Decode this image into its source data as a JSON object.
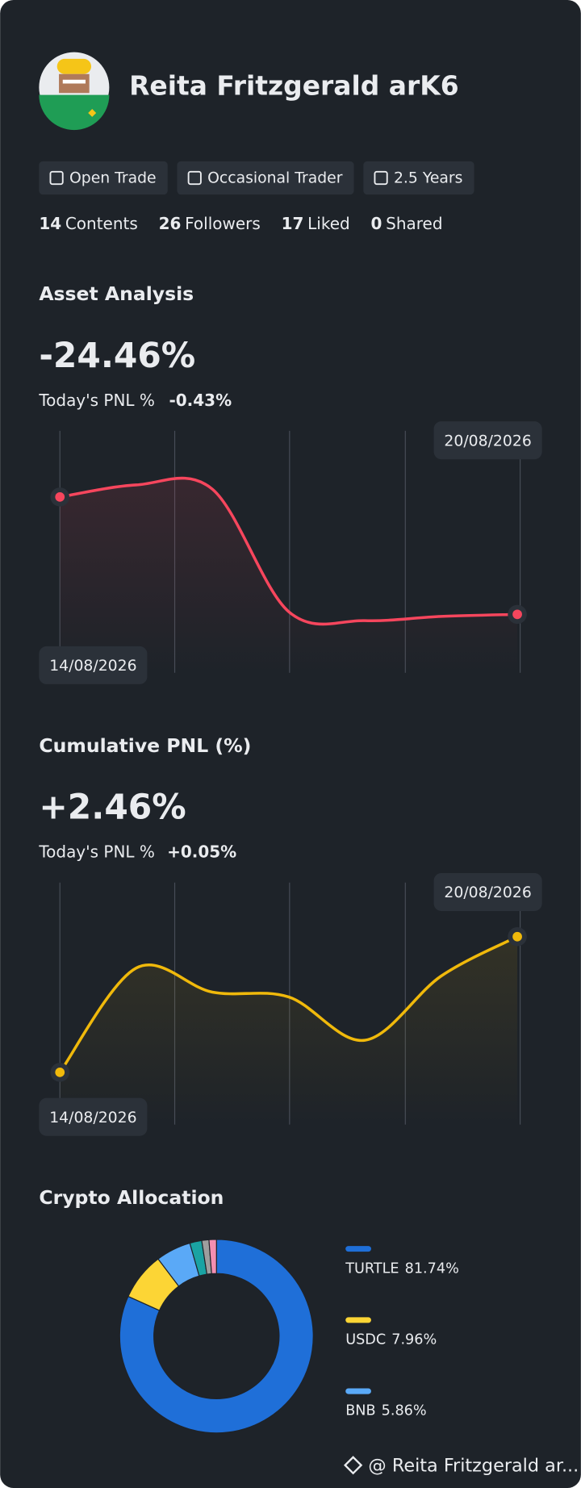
{
  "profile": {
    "name": "Reita Fritzgerald arK6",
    "tags": [
      "Open Trade",
      "Occasional Trader",
      "2.5 Years"
    ],
    "stats": [
      {
        "count": 14,
        "label": "Contents"
      },
      {
        "count": 26,
        "label": "Followers"
      },
      {
        "count": 17,
        "label": "Liked"
      },
      {
        "count": 0,
        "label": "Shared"
      }
    ]
  },
  "chart_data": [
    {
      "type": "line",
      "title": "Asset Analysis",
      "headline": "-24.46%",
      "subtitle_label": "Today's PNL %",
      "subtitle_value": "-0.43%",
      "categories": [
        "14/08/2026",
        null,
        null,
        null,
        null,
        null,
        "20/08/2026"
      ],
      "series": [
        {
          "color": "#f6465d",
          "values": [
            -5,
            -3,
            -3.7,
            -24,
            -25.5,
            -24.8,
            -24.46
          ]
        }
      ]
    },
    {
      "type": "line",
      "title": "Cumulative PNL (%)",
      "headline": "+2.46%",
      "subtitle_label": "Today's PNL %",
      "subtitle_value": "+0.05%",
      "categories": [
        "14/08/2026",
        null,
        null,
        null,
        null,
        null,
        "20/08/2026"
      ],
      "series": [
        {
          "color": "#f0b90b",
          "values": [
            -6,
            0.5,
            -1,
            -1.3,
            -4,
            0,
            2.46
          ]
        }
      ]
    },
    {
      "type": "donut",
      "title": "Crypto Allocation",
      "categories": [
        "TURTLE",
        "USDC",
        "BNB",
        null,
        null,
        null
      ],
      "values": [
        81.74,
        7.96,
        5.86,
        2.0,
        1.2,
        1.24
      ],
      "value_labels": [
        "81.74%",
        "7.96%",
        "5.86%",
        null,
        null,
        null
      ],
      "colors": [
        "#1f6fd8",
        "#fcd535",
        "#5aa9f7",
        "#1aa3a3",
        "#9e9e9e",
        "#f48fb1"
      ]
    }
  ],
  "footer": "@ Reita Fritzgerald ar..."
}
